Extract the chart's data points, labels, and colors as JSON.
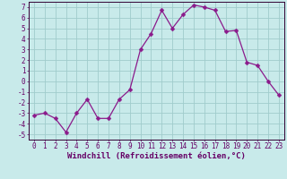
{
  "x": [
    0,
    1,
    2,
    3,
    4,
    5,
    6,
    7,
    8,
    9,
    10,
    11,
    12,
    13,
    14,
    15,
    16,
    17,
    18,
    19,
    20,
    21,
    22,
    23
  ],
  "y": [
    -3.2,
    -3.0,
    -3.5,
    -4.8,
    -3.0,
    -1.7,
    -3.5,
    -3.5,
    -1.7,
    -0.8,
    3.0,
    4.5,
    6.7,
    5.0,
    6.3,
    7.2,
    7.0,
    6.7,
    4.7,
    4.8,
    1.8,
    1.5,
    0.0,
    -1.3
  ],
  "line_color": "#8b1a8b",
  "marker": "D",
  "marker_size": 2.5,
  "bg_color": "#c8eaea",
  "grid_color": "#a0cccc",
  "xlabel": "Windchill (Refroidissement éolien,°C)",
  "ylabel": "",
  "title": "",
  "xlim": [
    -0.5,
    23.5
  ],
  "ylim": [
    -5.5,
    7.5
  ],
  "yticks": [
    -5,
    -4,
    -3,
    -2,
    -1,
    0,
    1,
    2,
    3,
    4,
    5,
    6,
    7
  ],
  "xticks": [
    0,
    1,
    2,
    3,
    4,
    5,
    6,
    7,
    8,
    9,
    10,
    11,
    12,
    13,
    14,
    15,
    16,
    17,
    18,
    19,
    20,
    21,
    22,
    23
  ],
  "tick_fontsize": 5.5,
  "xlabel_fontsize": 6.5,
  "axes_color": "#330033",
  "tick_color": "#660066"
}
